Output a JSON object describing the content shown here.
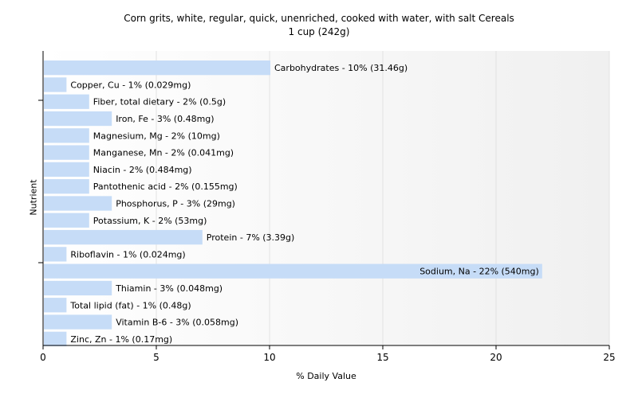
{
  "chart_data": {
    "type": "bar",
    "orientation": "horizontal",
    "title": "Corn grits, white, regular, quick, unenriched, cooked with water, with salt Cereals",
    "subtitle": "1 cup (242g)",
    "xlabel": "% Daily Value",
    "ylabel": "Nutrient",
    "xlim": [
      0,
      25
    ],
    "xticks": [
      0,
      5,
      10,
      15,
      20,
      25
    ],
    "grid": true,
    "bar_color": "#c6dcf7",
    "bars": [
      {
        "label": "Carbohydrates - 10% (31.46g)",
        "value": 10
      },
      {
        "label": "Copper, Cu - 1% (0.029mg)",
        "value": 1
      },
      {
        "label": "Fiber, total dietary - 2% (0.5g)",
        "value": 2
      },
      {
        "label": "Iron, Fe - 3% (0.48mg)",
        "value": 3
      },
      {
        "label": "Magnesium, Mg - 2% (10mg)",
        "value": 2
      },
      {
        "label": "Manganese, Mn - 2% (0.041mg)",
        "value": 2
      },
      {
        "label": "Niacin - 2% (0.484mg)",
        "value": 2
      },
      {
        "label": "Pantothenic acid - 2% (0.155mg)",
        "value": 2
      },
      {
        "label": "Phosphorus, P - 3% (29mg)",
        "value": 3
      },
      {
        "label": "Potassium, K - 2% (53mg)",
        "value": 2
      },
      {
        "label": "Protein - 7% (3.39g)",
        "value": 7
      },
      {
        "label": "Riboflavin - 1% (0.024mg)",
        "value": 1
      },
      {
        "label": "Sodium, Na - 22% (540mg)",
        "value": 22
      },
      {
        "label": "Thiamin - 3% (0.048mg)",
        "value": 3
      },
      {
        "label": "Total lipid (fat) - 1% (0.48g)",
        "value": 1
      },
      {
        "label": "Vitamin B-6 - 3% (0.058mg)",
        "value": 3
      },
      {
        "label": "Zinc, Zn - 1% (0.17mg)",
        "value": 1
      }
    ]
  }
}
